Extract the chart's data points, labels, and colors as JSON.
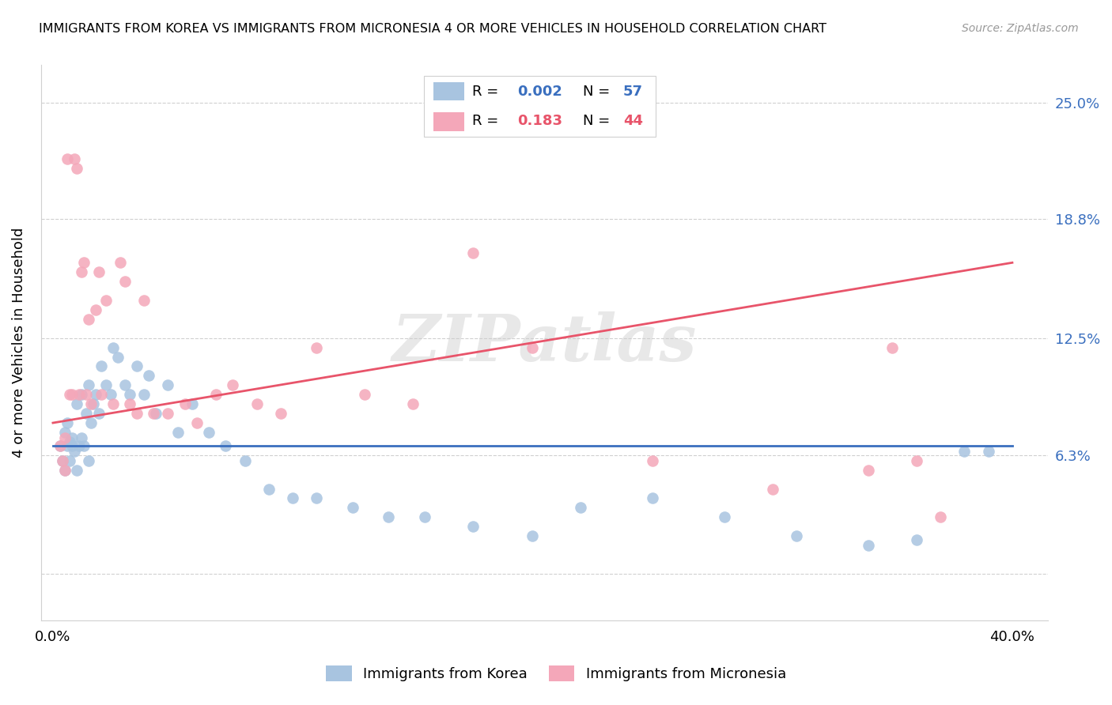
{
  "title": "IMMIGRANTS FROM KOREA VS IMMIGRANTS FROM MICRONESIA 4 OR MORE VEHICLES IN HOUSEHOLD CORRELATION CHART",
  "source": "Source: ZipAtlas.com",
  "ylabel": "4 or more Vehicles in Household",
  "ytick_vals": [
    0.0,
    0.063,
    0.125,
    0.188,
    0.25
  ],
  "ytick_labels": [
    "",
    "6.3%",
    "12.5%",
    "18.8%",
    "25.0%"
  ],
  "xtick_vals": [
    0.0,
    0.4
  ],
  "xtick_labels": [
    "0.0%",
    "40.0%"
  ],
  "xlim": [
    -0.005,
    0.415
  ],
  "ylim": [
    -0.025,
    0.27
  ],
  "korea_color": "#a8c4e0",
  "micronesia_color": "#f4a7b9",
  "korea_line_color": "#3a6fbf",
  "micronesia_line_color": "#e8546a",
  "grid_color": "#d0d0d0",
  "korea_R": 0.002,
  "korea_N": 57,
  "micronesia_R": 0.183,
  "micronesia_N": 44,
  "watermark": "ZIPatlas",
  "legend_korea": "Immigrants from Korea",
  "legend_micronesia": "Immigrants from Micronesia",
  "korea_line_y0": 0.068,
  "korea_line_y1": 0.068,
  "micro_line_y0": 0.08,
  "micro_line_y1": 0.165,
  "korea_x": [
    0.003,
    0.004,
    0.005,
    0.005,
    0.006,
    0.006,
    0.007,
    0.007,
    0.008,
    0.008,
    0.009,
    0.01,
    0.01,
    0.011,
    0.012,
    0.012,
    0.013,
    0.014,
    0.015,
    0.015,
    0.016,
    0.017,
    0.018,
    0.019,
    0.02,
    0.022,
    0.024,
    0.025,
    0.027,
    0.03,
    0.032,
    0.035,
    0.038,
    0.04,
    0.043,
    0.048,
    0.052,
    0.058,
    0.065,
    0.072,
    0.08,
    0.09,
    0.1,
    0.11,
    0.125,
    0.14,
    0.155,
    0.175,
    0.2,
    0.22,
    0.25,
    0.28,
    0.31,
    0.34,
    0.36,
    0.38,
    0.39
  ],
  "korea_y": [
    0.068,
    0.06,
    0.075,
    0.055,
    0.068,
    0.08,
    0.07,
    0.06,
    0.068,
    0.072,
    0.065,
    0.09,
    0.055,
    0.068,
    0.095,
    0.072,
    0.068,
    0.085,
    0.1,
    0.06,
    0.08,
    0.09,
    0.095,
    0.085,
    0.11,
    0.1,
    0.095,
    0.12,
    0.115,
    0.1,
    0.095,
    0.11,
    0.095,
    0.105,
    0.085,
    0.1,
    0.075,
    0.09,
    0.075,
    0.068,
    0.06,
    0.045,
    0.04,
    0.04,
    0.035,
    0.03,
    0.03,
    0.025,
    0.02,
    0.035,
    0.04,
    0.03,
    0.02,
    0.015,
    0.018,
    0.065,
    0.065
  ],
  "micro_x": [
    0.003,
    0.004,
    0.005,
    0.005,
    0.006,
    0.007,
    0.008,
    0.009,
    0.01,
    0.011,
    0.012,
    0.013,
    0.014,
    0.015,
    0.016,
    0.018,
    0.019,
    0.02,
    0.022,
    0.025,
    0.028,
    0.03,
    0.032,
    0.035,
    0.038,
    0.042,
    0.048,
    0.055,
    0.06,
    0.068,
    0.075,
    0.085,
    0.095,
    0.11,
    0.13,
    0.15,
    0.175,
    0.2,
    0.25,
    0.3,
    0.34,
    0.35,
    0.36,
    0.37
  ],
  "micro_y": [
    0.068,
    0.06,
    0.055,
    0.072,
    0.22,
    0.095,
    0.095,
    0.22,
    0.215,
    0.095,
    0.16,
    0.165,
    0.095,
    0.135,
    0.09,
    0.14,
    0.16,
    0.095,
    0.145,
    0.09,
    0.165,
    0.155,
    0.09,
    0.085,
    0.145,
    0.085,
    0.085,
    0.09,
    0.08,
    0.095,
    0.1,
    0.09,
    0.085,
    0.12,
    0.095,
    0.09,
    0.17,
    0.12,
    0.06,
    0.045,
    0.055,
    0.12,
    0.06,
    0.03
  ]
}
